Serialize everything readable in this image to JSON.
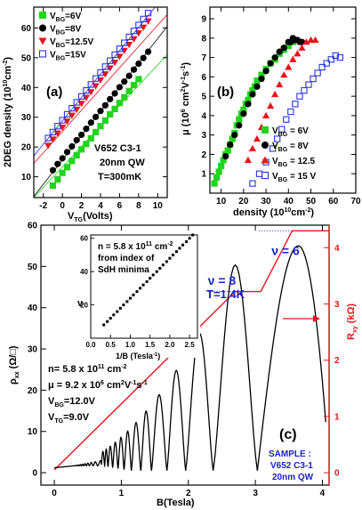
{
  "colors": {
    "green": "#22d41e",
    "black": "#000000",
    "red": "#e8141b",
    "blue": "#2b36d6",
    "blue_text": "#1a22c8"
  },
  "chart_data": [
    {
      "id": "a",
      "type": "scatter",
      "panel_label": "(a)",
      "xlabel_main": "V",
      "xlabel_sub": "TG",
      "xlabel_tail": "(Volts)",
      "ylabel_main": "2DEG density (10",
      "ylabel_sup": "10",
      "ylabel_tail": "cm",
      "ylabel_sup2": "-2",
      "ylabel_end": ")",
      "xlim": [
        -3,
        11
      ],
      "ylim": [
        3,
        67
      ],
      "xticks": [
        -2,
        0,
        2,
        4,
        6,
        8,
        10
      ],
      "yticks": [
        10,
        20,
        30,
        40,
        50,
        60
      ],
      "legend_placement": "top-left",
      "annotation": [
        "V652 C3-1",
        "20nm QW",
        "T=300mK"
      ],
      "series": [
        {
          "name": "=6V",
          "marker": "square-filled",
          "color": "#22d41e",
          "x": [
            -1.0,
            -0.5,
            0,
            0.5,
            1,
            1.5,
            2,
            2.5,
            3,
            3.5,
            4,
            4.5,
            5,
            5.5,
            6,
            6.5,
            7,
            7.5,
            8
          ],
          "y": [
            7.0,
            9.1,
            11.3,
            13.2,
            15.3,
            17.2,
            19.2,
            21.0,
            22.9,
            25.0,
            27.0,
            28.9,
            31.0,
            32.8,
            34.8,
            36.7,
            38.8,
            40.8,
            42.8
          ]
        },
        {
          "name": "=8V",
          "marker": "circle-filled",
          "color": "#000000",
          "x": [
            -1.0,
            -0.5,
            0,
            0.5,
            1,
            1.5,
            2,
            2.5,
            3,
            3.5,
            4,
            4.5,
            5,
            5.5,
            6,
            6.5,
            7,
            7.5,
            8,
            8.5,
            9
          ],
          "y": [
            12.2,
            14.3,
            16.2,
            18.3,
            20.2,
            22.3,
            24.1,
            26.1,
            28.2,
            30.1,
            32.1,
            34.0,
            36.1,
            38.0,
            40.1,
            42.0,
            43.9,
            46.0,
            48.0,
            49.9,
            52.0
          ]
        },
        {
          "name": "=12.5V",
          "marker": "triangle-down-filled",
          "color": "#e8141b",
          "x": [
            -1.5,
            -1,
            -0.5,
            0,
            0.5,
            1,
            1.5,
            2,
            2.5,
            3,
            3.5,
            4,
            4.5,
            5,
            5.5,
            6,
            6.5,
            7,
            7.5,
            8,
            8.5,
            9
          ],
          "y": [
            20.5,
            22.6,
            24.6,
            26.6,
            28.6,
            30.6,
            32.6,
            34.6,
            36.6,
            38.5,
            40.5,
            42.5,
            44.5,
            46.5,
            48.4,
            50.4,
            52.4,
            54.4,
            56.3,
            58.3,
            60.2,
            62.3
          ]
        },
        {
          "name": "=15V",
          "marker": "square-open",
          "color": "#2b36d6",
          "x": [
            -1.5,
            -1,
            -0.5,
            0,
            0.5,
            1,
            1.5,
            2,
            2.5,
            3,
            3.5,
            4,
            4.5,
            5,
            5.5,
            6,
            6.5,
            7,
            7.5,
            8,
            8.5,
            9
          ],
          "y": [
            23.0,
            25.0,
            27.0,
            29.0,
            31.0,
            33.0,
            35.0,
            37.0,
            39.0,
            41.0,
            43.0,
            45.0,
            47.0,
            49.0,
            51.0,
            53.0,
            55.0,
            57.0,
            59.0,
            61.0,
            63.0,
            65.0
          ]
        }
      ],
      "legend_prefix": "V",
      "legend_sub": "BG",
      "fit_lines": [
        {
          "color": "#22d41e",
          "x": [
            -3,
            11
          ],
          "y": [
            3.0,
            51.0
          ]
        },
        {
          "color": "#000000",
          "x": [
            -3,
            11
          ],
          "y": [
            3.4,
            60.5
          ]
        },
        {
          "color": "#e8141b",
          "x": [
            -3,
            11
          ],
          "y": [
            14.5,
            64.5
          ]
        },
        {
          "color": "#2b36d6",
          "x": [
            -3,
            11
          ],
          "y": [
            17.0,
            72.0
          ]
        }
      ]
    },
    {
      "id": "b",
      "type": "scatter",
      "panel_label": "(b)",
      "xlabel_main": "density (10",
      "xlabel_sup": "10",
      "xlabel_tail": "cm",
      "xlabel_sup2": "-2",
      "xlabel_end": ")",
      "ylabel_main": "μ (10",
      "ylabel_sup": "6",
      "ylabel_tail": " cm",
      "ylabel_sup2": "2",
      "ylabel_tail2": "V",
      "ylabel_sup3": "-1",
      "ylabel_tail3": "s",
      "ylabel_sup4": "-1",
      "ylabel_end": ")",
      "xlim": [
        5,
        70
      ],
      "ylim": [
        0,
        9.6
      ],
      "xticks": [
        10,
        20,
        30,
        40,
        50,
        60,
        70
      ],
      "yticks": [
        1,
        2,
        3,
        4,
        5,
        6,
        7,
        8,
        9
      ],
      "legend_placement": "bottom-right",
      "series": [
        {
          "name": " = 6V",
          "marker": "square-filled",
          "color": "#22d41e",
          "x": [
            7,
            8,
            9,
            10,
            11,
            12,
            13,
            14,
            15,
            16,
            17,
            18,
            19,
            20,
            21,
            22,
            23,
            24,
            25,
            26,
            28,
            30,
            32,
            34,
            36,
            38,
            40,
            42
          ],
          "y": [
            0.5,
            0.8,
            1.1,
            1.4,
            1.7,
            2.0,
            2.2,
            2.5,
            2.8,
            3.1,
            3.5,
            3.8,
            4.1,
            4.3,
            4.6,
            4.8,
            5.1,
            5.3,
            5.5,
            5.8,
            6.1,
            6.4,
            6.7,
            6.9,
            7.2,
            7.4,
            7.6,
            7.8
          ]
        },
        {
          "name": " = 8V",
          "marker": "circle-filled",
          "color": "#000000",
          "x": [
            12,
            14,
            16,
            18,
            20,
            22,
            24,
            26,
            28,
            30,
            32,
            34,
            36,
            38,
            40,
            41,
            42,
            43,
            44,
            45,
            46
          ],
          "y": [
            1.9,
            2.5,
            3.0,
            3.5,
            4.1,
            4.6,
            5.1,
            5.5,
            5.9,
            6.3,
            6.7,
            7.0,
            7.3,
            7.5,
            7.8,
            7.8,
            8.0,
            7.9,
            7.9,
            7.8,
            7.8
          ]
        },
        {
          "name": " = 12.5",
          "marker": "triangle-up-filled",
          "color": "#e8141b",
          "x": [
            22,
            24,
            26,
            28,
            30,
            32,
            34,
            36,
            38,
            40,
            42,
            44,
            46,
            48,
            50,
            52
          ],
          "y": [
            1.7,
            2.3,
            2.8,
            3.4,
            4.0,
            4.5,
            5.1,
            5.6,
            6.1,
            6.5,
            6.9,
            7.2,
            7.5,
            7.8,
            7.9,
            7.9
          ]
        },
        {
          "name": " = 15 V",
          "marker": "square-open",
          "color": "#2b36d6",
          "x": [
            24,
            27,
            30,
            33,
            35,
            37,
            39,
            41,
            43,
            45,
            47,
            49,
            51,
            53,
            55,
            57,
            59,
            61,
            63
          ],
          "y": [
            0.5,
            1.0,
            1.6,
            2.3,
            2.8,
            3.3,
            3.8,
            4.2,
            4.6,
            5.0,
            5.3,
            5.6,
            5.9,
            6.2,
            6.5,
            6.7,
            6.9,
            7.1,
            7.0
          ]
        }
      ],
      "legend_prefix": "V",
      "legend_sub": "BG"
    },
    {
      "id": "c",
      "type": "line",
      "panel_label": "(c)",
      "xlabel": "B(Tesla)",
      "ylabel_left_main": "ρ",
      "ylabel_left_sub": "xx",
      "ylabel_left_tail": " (Ω/□)",
      "ylabel_right_main": "R",
      "ylabel_right_sub": "xy",
      "ylabel_right_tail": " (kΩ)",
      "xlim": [
        -0.2,
        4.1
      ],
      "ylim_left": [
        -3,
        60
      ],
      "ylim_right": [
        -0.22,
        4.4
      ],
      "xticks": [
        0,
        1,
        2,
        3,
        4
      ],
      "yticks_left": [
        0,
        10,
        20,
        30,
        40,
        50,
        60
      ],
      "yticks_right": [
        0,
        1,
        2,
        3,
        4
      ],
      "temperature": "T=1.4K",
      "nu_labels": [
        {
          "text": "ν = 6",
          "B": 3.45,
          "rho": 52.8
        },
        {
          "text": "ν = 8",
          "B": 2.5,
          "rho": 45.5
        }
      ],
      "params": {
        "n_main": "n= 5.8 x 10",
        "n_sup": "11",
        "n_tail": " cm",
        "n_sup2": "-2",
        "mu_main": "μ = 9.2 x 10",
        "mu_sup": "6",
        "mu_tail": " cm",
        "mu_sup2": "2",
        "mu_tail2": "V",
        "mu_sup3": "-1",
        "mu_tail3": "s",
        "mu_sup4": "-1",
        "vbg_main": "V",
        "vbg_sub": "BG",
        "vbg_tail": "=12.0V",
        "vtg_main": "V",
        "vtg_sub": "TG",
        "vtg_tail": "=9.0V"
      },
      "sample": [
        "SAMPLE :",
        "V652 C3-1",
        "20nm QW"
      ],
      "rho_minima_B": [
        3.03,
        2.37,
        1.96,
        1.68,
        1.45,
        1.29,
        1.15,
        1.04,
        0.95,
        0.87,
        0.8,
        0.75,
        0.7
      ],
      "rxy_plateaus": [
        {
          "B_start": 3.55,
          "B_end": 4.05,
          "R": 4.3
        },
        {
          "B_start": 2.7,
          "B_end": 3.08,
          "R": 3.22
        }
      ],
      "dotted_guides": [
        {
          "B_start": 3.05,
          "B_end": 3.55,
          "R": 4.3
        },
        {
          "B_start": 2.3,
          "B_end": 2.75,
          "R": 3.22
        },
        {
          "B_start": 1.75,
          "B_end": 2.2,
          "R": 2.58
        },
        {
          "B_start": 1.25,
          "B_end": 1.85,
          "R": 2.15
        }
      ],
      "inset": {
        "type": "scatter",
        "text_main": "n = 5.8 x 10",
        "text_sup": "11",
        "text_tail": " cm",
        "text_sup2": "-2",
        "text_line2": "from index of",
        "text_line3": "SdH minima",
        "ylabel": "ν",
        "xlabel_main": "1/B (Tesla",
        "xlabel_sup": "-1",
        "xlabel_end": ")",
        "xlim": [
          0,
          2.7
        ],
        "ylim": [
          0,
          62
        ],
        "xticks": [
          0.0,
          0.5,
          1.0,
          1.5,
          2.0,
          2.5
        ],
        "xtick_labels": [
          "0.0",
          "0.5",
          "1.0",
          "1.5",
          "2.0",
          "2.5"
        ],
        "yticks": [
          20,
          40,
          60
        ],
        "x": [
          0.33,
          0.42,
          0.5,
          0.58,
          0.67,
          0.75,
          0.83,
          0.92,
          1.0,
          1.08,
          1.17,
          1.25,
          1.33,
          1.42,
          1.5,
          1.58,
          1.67,
          1.75,
          1.83,
          1.92,
          2.0,
          2.08,
          2.17,
          2.25,
          2.33,
          2.42,
          2.5,
          2.58
        ],
        "y": [
          8,
          10,
          12,
          14,
          16,
          18,
          20,
          22,
          24,
          26,
          28,
          30,
          32,
          34,
          36,
          38,
          40,
          42,
          44,
          46,
          48,
          50,
          52,
          54,
          56,
          58,
          60,
          62
        ]
      }
    }
  ]
}
